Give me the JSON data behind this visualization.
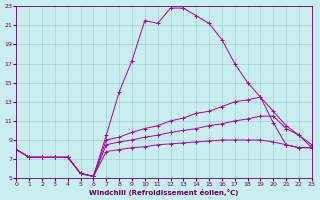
{
  "xlabel": "Windchill (Refroidissement éolien,°C)",
  "background_color": "#c8eef0",
  "line_color": "#aa00aa",
  "xlim": [
    0,
    23
  ],
  "ylim": [
    5,
    23
  ],
  "xticks": [
    0,
    1,
    2,
    3,
    4,
    5,
    6,
    7,
    8,
    9,
    10,
    11,
    12,
    13,
    14,
    15,
    16,
    17,
    18,
    19,
    20,
    21,
    22,
    23
  ],
  "yticks": [
    5,
    7,
    9,
    11,
    13,
    15,
    17,
    19,
    21,
    23
  ],
  "curves": [
    {
      "x": [
        0,
        1,
        2,
        3,
        4,
        5,
        6,
        7,
        8,
        9,
        10,
        11,
        12,
        13,
        14,
        15,
        16,
        17,
        18,
        19,
        20,
        21,
        22,
        23
      ],
      "y": [
        8,
        7.2,
        7.2,
        7.2,
        7.2,
        5.5,
        5.2,
        9.5,
        14.0,
        17.3,
        21.5,
        21.2,
        22.8,
        22.8,
        22.0,
        21.2,
        19.5,
        17.0,
        15.0,
        13.5,
        10.8,
        8.5,
        8.2,
        8.2
      ]
    },
    {
      "x": [
        0,
        1,
        2,
        3,
        4,
        5,
        6,
        7,
        8,
        9,
        10,
        11,
        12,
        13,
        14,
        15,
        16,
        17,
        18,
        19,
        20,
        21,
        22,
        23
      ],
      "y": [
        8,
        7.2,
        7.2,
        7.2,
        7.2,
        5.5,
        5.2,
        9.0,
        9.3,
        9.8,
        10.2,
        10.5,
        11.0,
        11.3,
        11.8,
        12.0,
        12.5,
        13.0,
        13.2,
        13.5,
        12.0,
        10.5,
        9.5,
        8.2
      ]
    },
    {
      "x": [
        0,
        1,
        2,
        3,
        4,
        5,
        6,
        7,
        8,
        9,
        10,
        11,
        12,
        13,
        14,
        15,
        16,
        17,
        18,
        19,
        20,
        21,
        22,
        23
      ],
      "y": [
        8,
        7.2,
        7.2,
        7.2,
        7.2,
        5.5,
        5.2,
        8.5,
        8.8,
        9.0,
        9.3,
        9.5,
        9.8,
        10.0,
        10.2,
        10.5,
        10.7,
        11.0,
        11.2,
        11.5,
        11.5,
        10.2,
        9.5,
        8.5
      ]
    },
    {
      "x": [
        0,
        1,
        2,
        3,
        4,
        5,
        6,
        7,
        8,
        9,
        10,
        11,
        12,
        13,
        14,
        15,
        16,
        17,
        18,
        19,
        20,
        21,
        22,
        23
      ],
      "y": [
        8,
        7.2,
        7.2,
        7.2,
        7.2,
        5.5,
        5.2,
        7.8,
        8.0,
        8.2,
        8.3,
        8.5,
        8.6,
        8.7,
        8.8,
        8.9,
        9.0,
        9.0,
        9.0,
        9.0,
        8.8,
        8.5,
        8.2,
        8.2
      ]
    }
  ]
}
